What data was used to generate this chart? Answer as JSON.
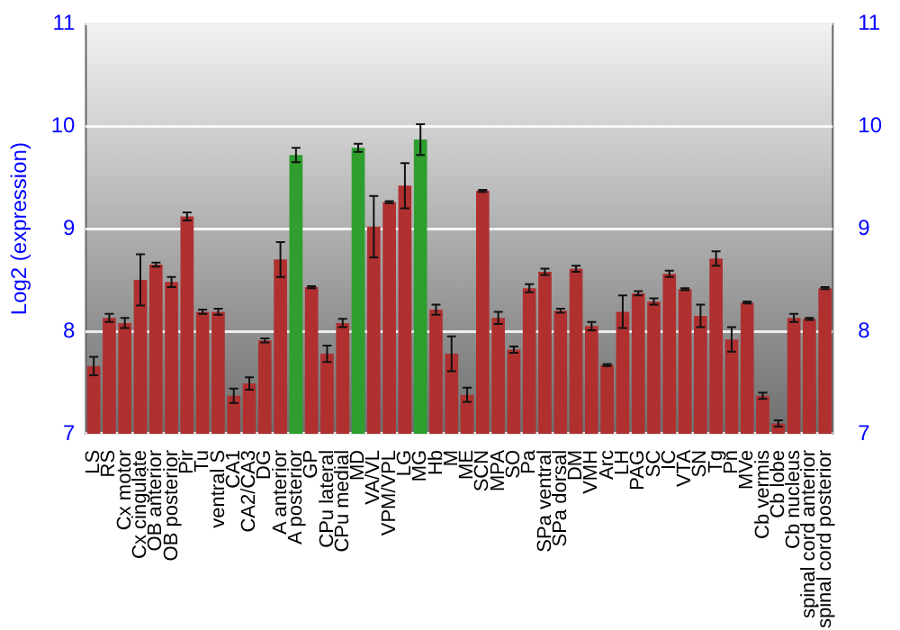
{
  "chart_data": {
    "type": "bar",
    "ylabel": "Log2 (expression)",
    "categories": [
      "LS",
      "RS",
      "Cx motor",
      "Cx cingulate",
      "OB anterior",
      "OB posterior",
      "Pir",
      "Tu",
      "ventral S",
      "CA1",
      "CA2/CA3",
      "DG",
      "A anterior",
      "A posterior",
      "GP",
      "CPu lateral",
      "CPu medial",
      "MD",
      "VA/VL",
      "VPM/VPL",
      "LG",
      "MG",
      "Hb",
      "M",
      "ME",
      "SCN",
      "MPA",
      "SO",
      "Pa",
      "SPa ventral",
      "SPa dorsal",
      "DM",
      "VMH",
      "Arc",
      "LH",
      "PAG",
      "SC",
      "IC",
      "VTA",
      "SN",
      "Tg",
      "Pn",
      "MVe",
      "Cb vermis",
      "Cb lobe",
      "Cb nucleus",
      "spinal cord anterior",
      "spinal cord posterior"
    ],
    "values": [
      7.66,
      8.13,
      8.08,
      8.5,
      8.65,
      8.48,
      9.12,
      8.19,
      8.19,
      7.37,
      7.49,
      7.91,
      8.7,
      9.72,
      8.43,
      7.78,
      8.08,
      9.79,
      9.02,
      9.26,
      9.42,
      9.87,
      8.21,
      7.78,
      7.38,
      9.37,
      8.13,
      7.82,
      8.42,
      8.58,
      8.2,
      8.61,
      8.05,
      7.67,
      8.19,
      8.37,
      8.29,
      8.56,
      8.41,
      8.15,
      8.71,
      7.92,
      8.28,
      7.37,
      7.1,
      8.13,
      8.12,
      8.42
    ],
    "errors": [
      0.09,
      0.04,
      0.05,
      0.25,
      0.02,
      0.05,
      0.04,
      0.02,
      0.03,
      0.07,
      0.06,
      0.02,
      0.17,
      0.07,
      0.01,
      0.08,
      0.04,
      0.04,
      0.3,
      0.01,
      0.22,
      0.15,
      0.05,
      0.17,
      0.07,
      0.01,
      0.06,
      0.03,
      0.04,
      0.03,
      0.02,
      0.03,
      0.04,
      0.01,
      0.16,
      0.02,
      0.03,
      0.03,
      0.01,
      0.11,
      0.07,
      0.12,
      0.01,
      0.03,
      0.03,
      0.04,
      0.01,
      0.01
    ],
    "colors": [
      "#b03030",
      "#b03030",
      "#b03030",
      "#b03030",
      "#b03030",
      "#b03030",
      "#b03030",
      "#b03030",
      "#b03030",
      "#b03030",
      "#b03030",
      "#b03030",
      "#b03030",
      "#2e9e2e",
      "#b03030",
      "#b03030",
      "#b03030",
      "#2e9e2e",
      "#b03030",
      "#b03030",
      "#b03030",
      "#2e9e2e",
      "#b03030",
      "#b03030",
      "#b03030",
      "#b03030",
      "#b03030",
      "#b03030",
      "#b03030",
      "#b03030",
      "#b03030",
      "#b03030",
      "#b03030",
      "#b03030",
      "#b03030",
      "#b03030",
      "#b03030",
      "#b03030",
      "#b03030",
      "#b03030",
      "#b03030",
      "#b03030",
      "#b03030",
      "#b03030",
      "#b03030",
      "#b03030",
      "#b03030",
      "#b03030"
    ],
    "ylim": [
      7,
      11
    ],
    "yticks": [
      7,
      8,
      9,
      10,
      11
    ],
    "y2lim": [
      7,
      11
    ],
    "y2ticks": [
      7,
      8,
      9,
      10,
      11
    ],
    "grid": "y",
    "legend": false
  }
}
